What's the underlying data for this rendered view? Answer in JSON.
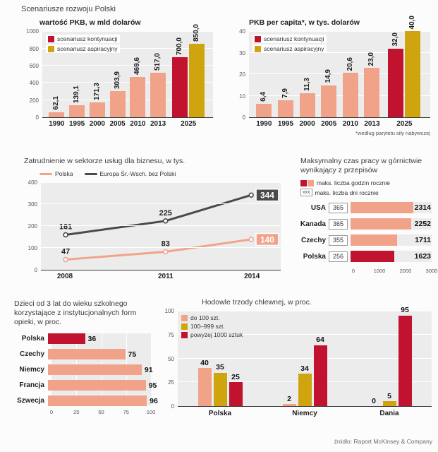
{
  "page_title": "Scenariusze rozwoju Polski",
  "source": "źródło: Raport McKinsey & Company",
  "colors": {
    "salmon": "#f1a38a",
    "red": "#c1122f",
    "gold": "#d0a40e",
    "dark": "#4a4a4a",
    "plot_bg": "#ececec"
  },
  "chart_data": [
    {
      "id": "gdp_total",
      "type": "bar",
      "title": "wartość PKB, w mld dolarów",
      "ylim": [
        0,
        1000
      ],
      "yticks": [
        "1000",
        "800",
        "600",
        "400",
        "200",
        "0"
      ],
      "legend": [
        {
          "label": "scenariusz kontynuacji",
          "color": "red"
        },
        {
          "label": "scenariusz aspiracyjny",
          "color": "gold"
        }
      ],
      "groups": [
        {
          "category": "1990",
          "bars": [
            {
              "value": 62.1,
              "label": "62,1",
              "color": "salmon"
            }
          ]
        },
        {
          "category": "1995",
          "bars": [
            {
              "value": 139.1,
              "label": "139,1",
              "color": "salmon"
            }
          ]
        },
        {
          "category": "2000",
          "bars": [
            {
              "value": 171.3,
              "label": "171,3",
              "color": "salmon"
            }
          ]
        },
        {
          "category": "2005",
          "bars": [
            {
              "value": 303.9,
              "label": "303,9",
              "color": "salmon"
            }
          ]
        },
        {
          "category": "2010",
          "bars": [
            {
              "value": 469.6,
              "label": "469,6",
              "color": "salmon"
            }
          ]
        },
        {
          "category": "2013",
          "bars": [
            {
              "value": 517.0,
              "label": "517,0",
              "color": "salmon"
            }
          ]
        },
        {
          "category": "2025",
          "bars": [
            {
              "value": 700.0,
              "label": "700,0",
              "color": "red"
            },
            {
              "value": 850.0,
              "label": "850,0",
              "color": "gold"
            }
          ]
        }
      ]
    },
    {
      "id": "gdp_per_capita",
      "type": "bar",
      "title": "PKB per capita*, w tys. dolarów",
      "footnote": "*według parytetu siły nabywczej",
      "ylim": [
        0,
        40
      ],
      "yticks": [
        "40",
        "30",
        "20",
        "10",
        "0"
      ],
      "legend": [
        {
          "label": "scenariusz kontynuacji",
          "color": "red"
        },
        {
          "label": "scenariusz aspiracyjny",
          "color": "gold"
        }
      ],
      "groups": [
        {
          "category": "1990",
          "bars": [
            {
              "value": 6.4,
              "label": "6,4",
              "color": "salmon"
            }
          ]
        },
        {
          "category": "1995",
          "bars": [
            {
              "value": 7.9,
              "label": "7,9",
              "color": "salmon"
            }
          ]
        },
        {
          "category": "2000",
          "bars": [
            {
              "value": 11.3,
              "label": "11,3",
              "color": "salmon"
            }
          ]
        },
        {
          "category": "2005",
          "bars": [
            {
              "value": 14.9,
              "label": "14,9",
              "color": "salmon"
            }
          ]
        },
        {
          "category": "2010",
          "bars": [
            {
              "value": 20.6,
              "label": "20,6",
              "color": "salmon"
            }
          ]
        },
        {
          "category": "2013",
          "bars": [
            {
              "value": 23.0,
              "label": "23,0",
              "color": "salmon"
            }
          ]
        },
        {
          "category": "2025",
          "bars": [
            {
              "value": 32.0,
              "label": "32,0",
              "color": "red"
            },
            {
              "value": 40.0,
              "label": "40,0",
              "color": "gold"
            }
          ]
        }
      ]
    },
    {
      "id": "employment",
      "type": "line",
      "title": "Zatrudnienie w sektorze usług dla biznesu, w tys.",
      "ylim": [
        0,
        400
      ],
      "yticks": [
        "400",
        "300",
        "200",
        "100",
        "0"
      ],
      "x": [
        "2008",
        "2011",
        "2014"
      ],
      "legend": [
        {
          "label": "Polska",
          "swatch": "line",
          "color": "salmon"
        },
        {
          "label": "Europa Śr.-Wsch. bez Polski",
          "swatch": "line",
          "color": "dark"
        }
      ],
      "series": [
        {
          "name": "Polska",
          "color": "salmon",
          "values": [
            47,
            83,
            140
          ],
          "end_badge": "140"
        },
        {
          "name": "Europa Śr.-Wsch. bez Polski",
          "color": "dark",
          "values": [
            161,
            225,
            344
          ],
          "end_badge": "344"
        }
      ]
    },
    {
      "id": "mining",
      "type": "hbar",
      "title": "Maksymalny czas pracy w górnictwie wynikający z przepisów",
      "xlim": [
        0,
        3000
      ],
      "xticks": [
        "0",
        "1000",
        "2000",
        "3000"
      ],
      "legend": [
        {
          "label": "maks. liczba godzin rocznie",
          "swatch": "split"
        },
        {
          "label": "maks. liczba dni rocznie",
          "swatch": "box",
          "box_text": "xxx"
        }
      ],
      "rows": [
        {
          "country": "USA",
          "days": "365",
          "hours": 2314,
          "color": "salmon"
        },
        {
          "country": "Kanada",
          "days": "365",
          "hours": 2252,
          "color": "salmon"
        },
        {
          "country": "Czechy",
          "days": "355",
          "hours": 1711,
          "color": "salmon"
        },
        {
          "country": "Polska",
          "days": "256",
          "hours": 1623,
          "color": "red"
        }
      ]
    },
    {
      "id": "childcare",
      "type": "hbar",
      "title": "Dzieci od 3 lat do wieku szkolnego korzystające z instytucjonalnych form opieki, w proc.",
      "xlim": [
        0,
        100
      ],
      "xticks": [
        "0",
        "25",
        "50",
        "75",
        "100"
      ],
      "rows": [
        {
          "country": "Polska",
          "value": 36,
          "color": "red"
        },
        {
          "country": "Czechy",
          "value": 75,
          "color": "salmon"
        },
        {
          "country": "Niemcy",
          "value": 91,
          "color": "salmon"
        },
        {
          "country": "Francja",
          "value": 95,
          "color": "salmon"
        },
        {
          "country": "Szwecja",
          "value": 96,
          "color": "salmon"
        }
      ]
    },
    {
      "id": "pigs",
      "type": "grouped_bar",
      "title": "Hodowle trzody chlewnej, w proc.",
      "ylim": [
        0,
        100
      ],
      "yticks": [
        "100",
        "75",
        "50",
        "25",
        "0"
      ],
      "categories": [
        "Polska",
        "Niemcy",
        "Dania"
      ],
      "legend": [
        {
          "label": "do 100 szt.",
          "color": "salmon"
        },
        {
          "label": "100–999 szt.",
          "color": "gold"
        },
        {
          "label": "powyżej 1000 sztuk",
          "color": "red"
        }
      ],
      "series": [
        {
          "name": "do 100 szt.",
          "color": "salmon",
          "values": [
            40,
            2,
            0
          ]
        },
        {
          "name": "100–999 szt.",
          "color": "gold",
          "values": [
            35,
            34,
            5
          ]
        },
        {
          "name": "powyżej 1000 sztuk",
          "color": "red",
          "values": [
            25,
            64,
            95
          ]
        }
      ]
    }
  ]
}
